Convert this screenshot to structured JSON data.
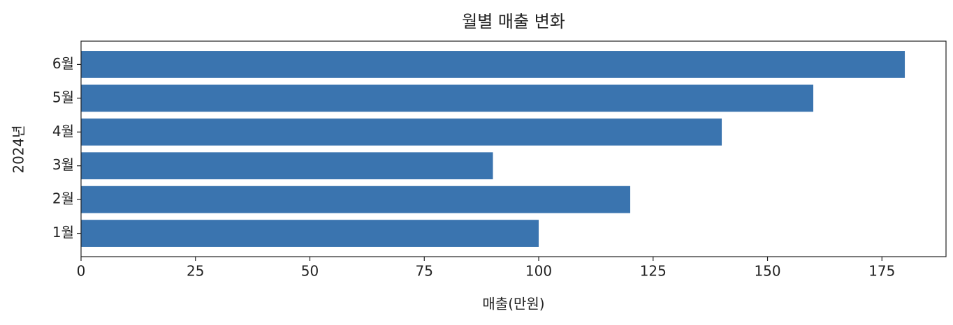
{
  "chart_data": {
    "type": "bar",
    "orientation": "horizontal",
    "title": "월별 매출 변화",
    "xlabel": "매출(만원)",
    "ylabel": "2024년",
    "categories": [
      "1월",
      "2월",
      "3월",
      "4월",
      "5월",
      "6월"
    ],
    "values": [
      100,
      120,
      90,
      140,
      160,
      180
    ],
    "color": "#3a74af",
    "xlim": [
      0,
      189
    ],
    "xticks": [
      0,
      25,
      50,
      75,
      100,
      125,
      150,
      175
    ],
    "grid": false
  }
}
